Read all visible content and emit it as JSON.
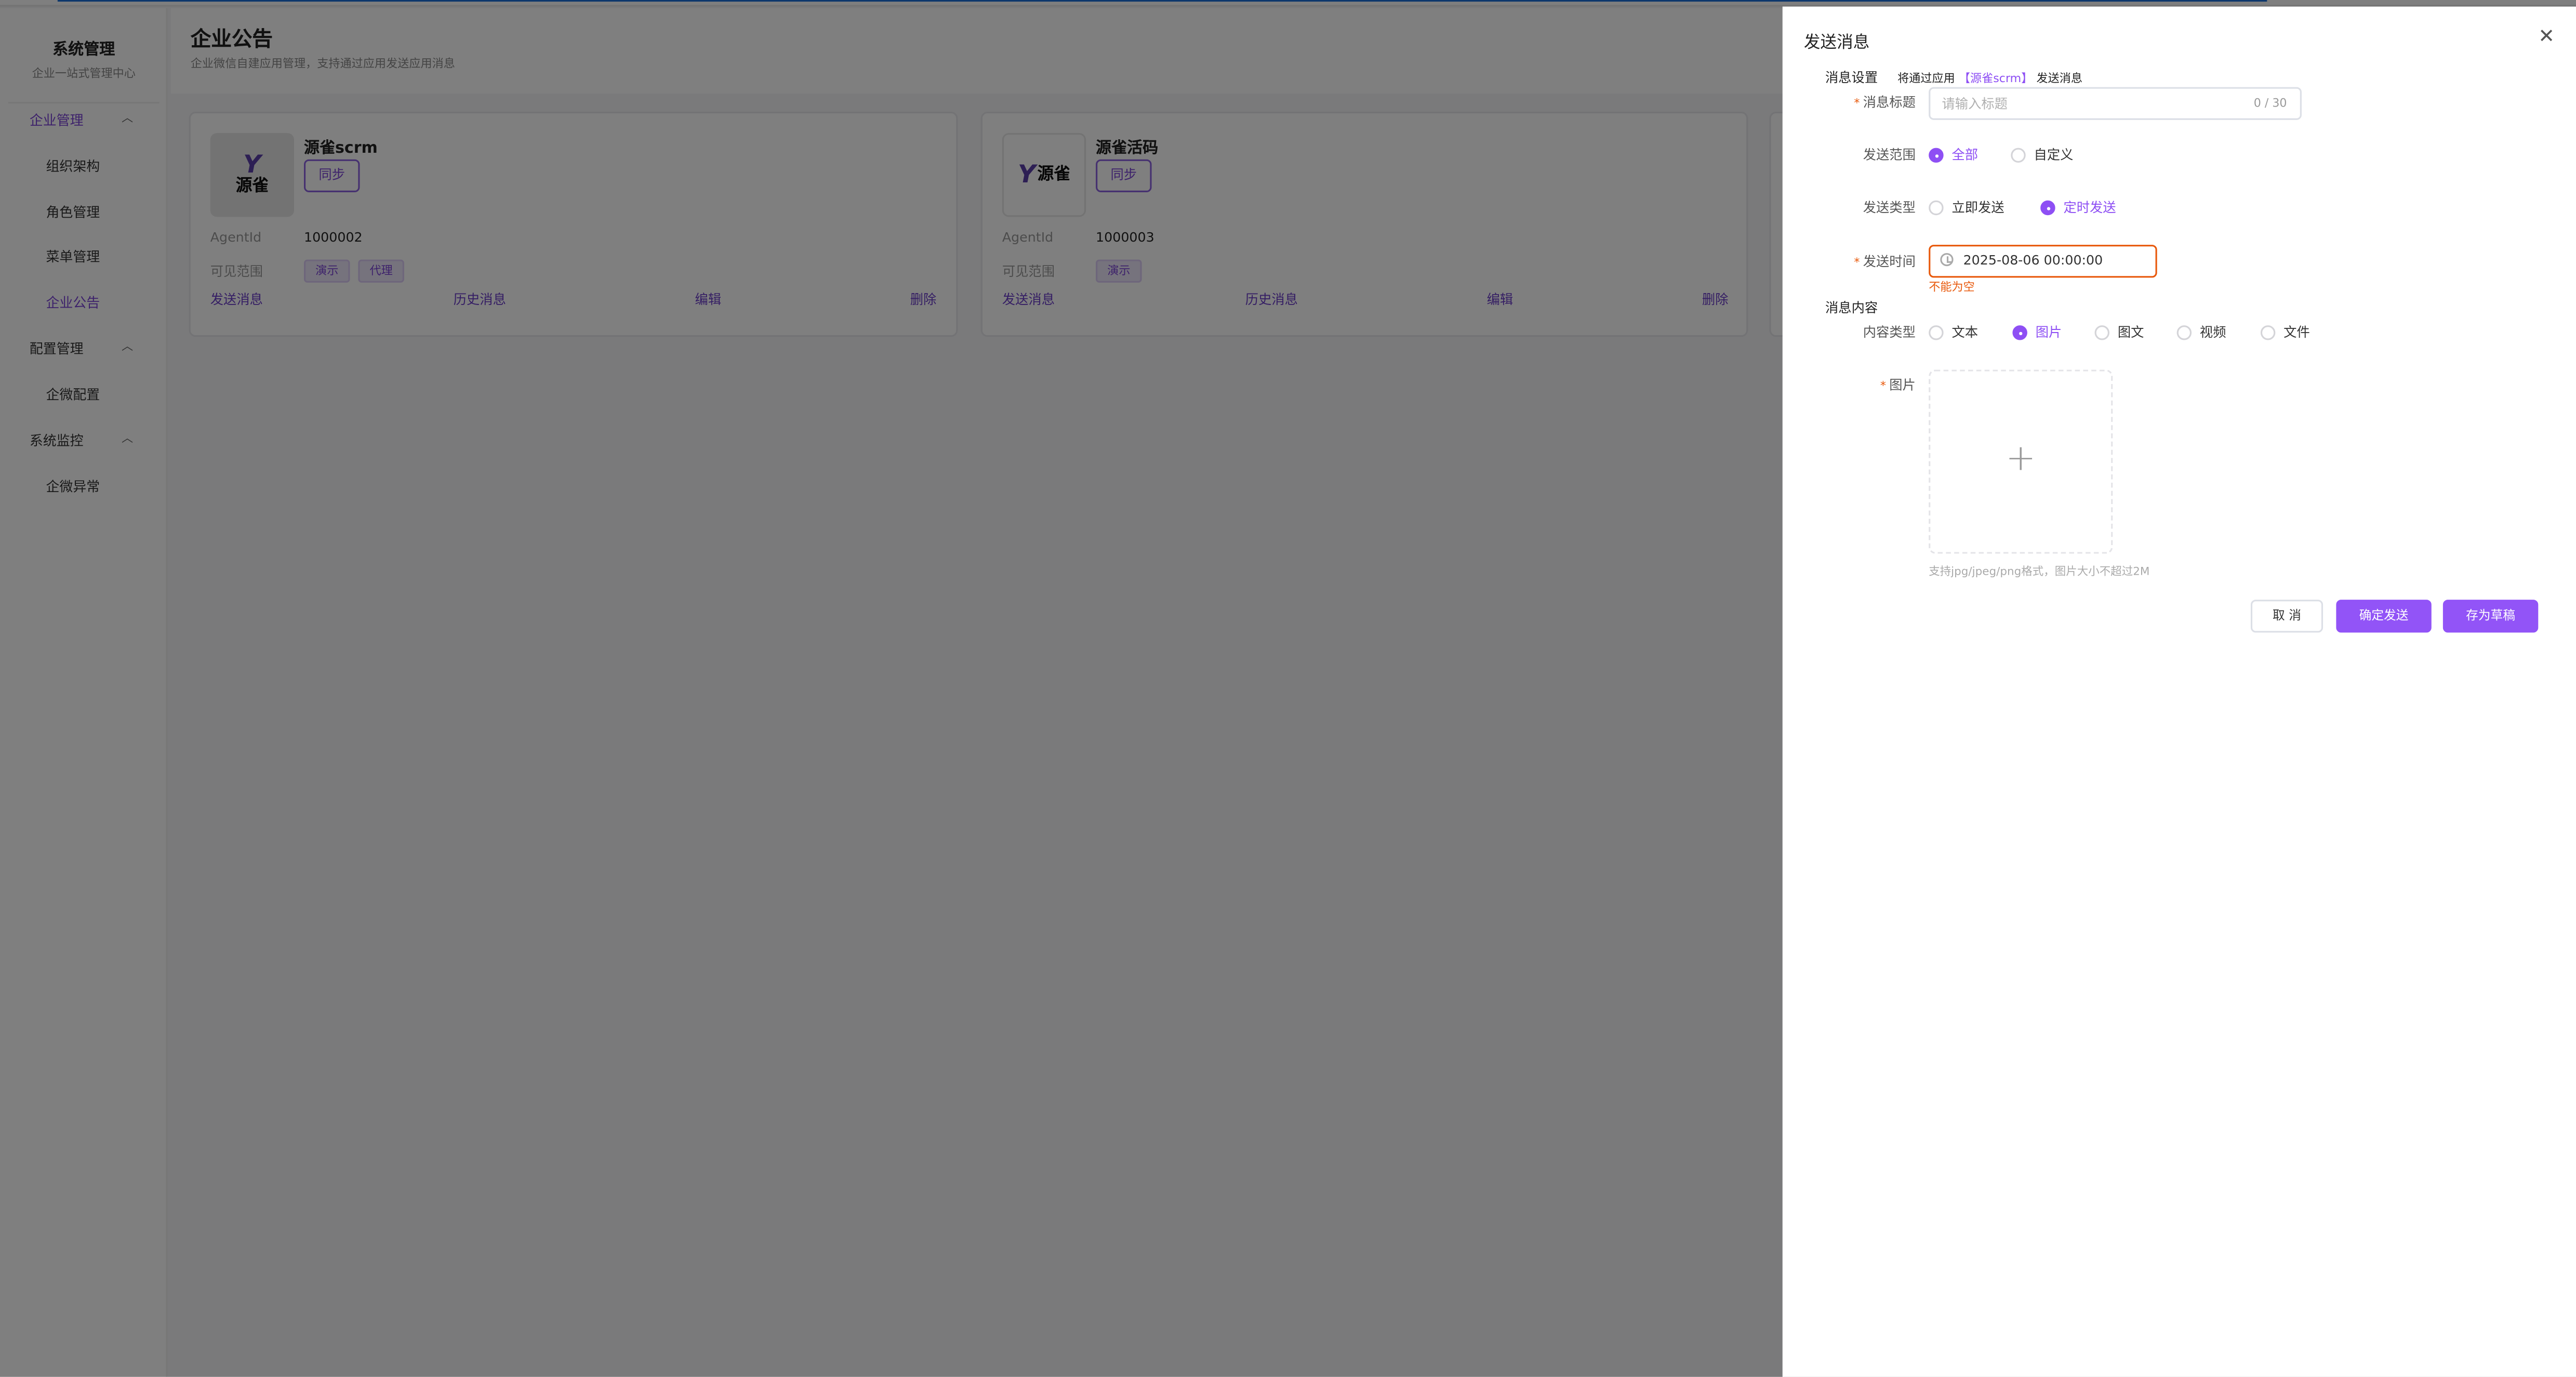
{
  "sidebar": {
    "title": "系统管理",
    "subtitle": "企业一站式管理中心",
    "groups": [
      {
        "label": "企业管理",
        "items": [
          "组织架构",
          "角色管理",
          "菜单管理",
          "企业公告"
        ]
      },
      {
        "label": "配置管理",
        "items": [
          "企微配置"
        ]
      },
      {
        "label": "系统监控",
        "items": [
          "企微异常"
        ]
      }
    ],
    "active_item": "企业公告"
  },
  "header": {
    "title": "企业公告",
    "subtitle": "企业微信自建应用管理，支持通过应用发送应用消息"
  },
  "cards": [
    {
      "name": "源雀scrm",
      "logo_text": "源雀",
      "sync_label": "同步",
      "agent_label": "AgentId",
      "agent_id": "1000002",
      "scope_label": "可见范围",
      "tags": [
        "演示",
        "代理"
      ],
      "actions": [
        "发送消息",
        "历史消息",
        "编辑",
        "删除"
      ]
    },
    {
      "name": "源雀活码",
      "logo_text": "源雀",
      "sync_label": "同步",
      "agent_label": "AgentId",
      "agent_id": "1000003",
      "scope_label": "可见范围",
      "tags": [
        "演示"
      ],
      "actions": [
        "发送消息",
        "历史消息",
        "编辑",
        "删除"
      ]
    }
  ],
  "drawer": {
    "title": "发送消息",
    "close_icon": "close-icon",
    "settings_section": "消息设置",
    "via_prefix": "将通过应用",
    "via_app": "【源雀scrm】",
    "via_suffix": "发送消息",
    "title_field": {
      "label": "消息标题",
      "placeholder": "请输入标题",
      "value": "",
      "counter": "0 / 30"
    },
    "scope": {
      "label": "发送范围",
      "options": [
        "全部",
        "自定义"
      ],
      "selected": "全部"
    },
    "send_type": {
      "label": "发送类型",
      "options": [
        "立即发送",
        "定时发送"
      ],
      "selected": "定时发送"
    },
    "send_time": {
      "label": "发送时间",
      "value": "2025-08-06 00:00:00",
      "error": "不能为空"
    },
    "content_section": "消息内容",
    "content_type": {
      "label": "内容类型",
      "options": [
        "文本",
        "图片",
        "图文",
        "视频",
        "文件"
      ],
      "selected": "图片"
    },
    "image": {
      "label": "图片",
      "hint": "支持jpg/jpeg/png格式，图片大小不超过2M"
    },
    "buttons": {
      "cancel": "取 消",
      "confirm": "确定发送",
      "draft": "存为草稿"
    }
  },
  "colors": {
    "accent": "#9254f7",
    "error": "#e8590c",
    "progress": "#1a6fd8"
  }
}
